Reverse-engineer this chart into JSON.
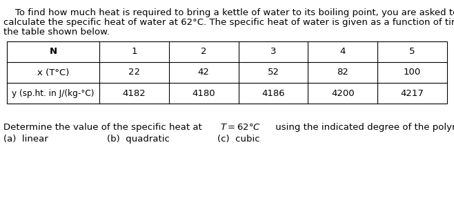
{
  "intro_line1": "    To find how much heat is required to bring a kettle of water to its boiling point, you are asked to",
  "intro_line2": "calculate the specific heat of water at 62°C. The specific heat of water is given as a function of time in",
  "intro_line3": "the table shown below.",
  "table_headers": [
    "N",
    "1",
    "2",
    "3",
    "4",
    "5"
  ],
  "table_row1_label": "x (T°C)",
  "table_row1_values": [
    "22",
    "42",
    "52",
    "82",
    "100"
  ],
  "table_row2_label": "y (sp.ht. in J/(kg-°C)",
  "table_row2_values": [
    "4182",
    "4180",
    "4186",
    "4200",
    "4217"
  ],
  "bottom_line1_pre": "Determine the value of the specific heat at ",
  "bottom_line1_eq": "T = 62°C",
  "bottom_line1_post": " using the indicated degree of the polynomial:",
  "bottom_line2_a": "(a)  linear",
  "bottom_line2_b": "(b)  quadratic",
  "bottom_line2_c": "(c)  cubic",
  "bg_color": "#ffffff",
  "text_color": "#000000",
  "fs": 9.5,
  "fs_bold": 9.5
}
